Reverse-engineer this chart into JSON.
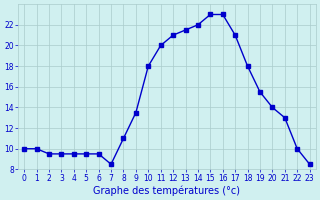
{
  "hours": [
    0,
    1,
    2,
    3,
    4,
    5,
    6,
    7,
    8,
    9,
    10,
    11,
    12,
    13,
    14,
    15,
    16,
    17,
    18,
    19,
    20,
    21,
    22,
    23
  ],
  "temps": [
    10,
    10,
    9.5,
    9.5,
    9.5,
    9.5,
    9.5,
    8.5,
    11,
    13.5,
    18,
    20,
    21,
    21.5,
    22,
    23,
    23,
    21,
    18,
    15.5,
    14,
    13,
    10,
    8.5
  ],
  "line_color": "#0000cc",
  "marker": "s",
  "marker_size": 2.5,
  "bg_color": "#d0f0f0",
  "grid_color": "#aacccc",
  "xlabel": "Graphe des températures (°c)",
  "xlabel_color": "#0000cc",
  "tick_color": "#0000cc",
  "ylim": [
    8,
    24
  ],
  "yticks": [
    8,
    10,
    12,
    14,
    16,
    18,
    20,
    22
  ],
  "xlim": [
    -0.5,
    23.5
  ],
  "xticks": [
    0,
    1,
    2,
    3,
    4,
    5,
    6,
    7,
    8,
    9,
    10,
    11,
    12,
    13,
    14,
    15,
    16,
    17,
    18,
    19,
    20,
    21,
    22,
    23
  ]
}
